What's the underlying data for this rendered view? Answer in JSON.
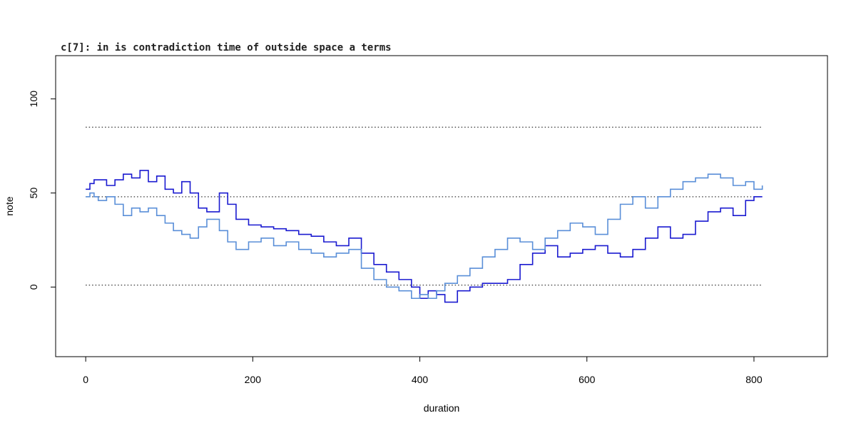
{
  "chart_data": {
    "type": "line",
    "title": "c[7]: in is contradiction time of outside space a terms",
    "xlabel": "duration",
    "ylabel": "note",
    "xlim": [
      -36,
      888
    ],
    "ylim": [
      -37,
      123
    ],
    "x_ticks": [
      0,
      200,
      400,
      600,
      800
    ],
    "y_ticks": [
      0,
      50,
      100
    ],
    "grid": false,
    "legend": "none",
    "reference_lines": [
      {
        "y": 1,
        "x": [
          0,
          810
        ],
        "style": "dotted",
        "color": "#000000"
      },
      {
        "y": 48,
        "x": [
          0,
          810
        ],
        "style": "dotted",
        "color": "#000000"
      },
      {
        "y": 85,
        "x": [
          0,
          810
        ],
        "style": "dotted",
        "color": "#000000"
      }
    ],
    "series": [
      {
        "step": true,
        "color": "#1a1ad0",
        "x": [
          0,
          5,
          10,
          25,
          35,
          45,
          55,
          65,
          75,
          85,
          95,
          105,
          115,
          125,
          135,
          145,
          160,
          170,
          180,
          195,
          210,
          225,
          240,
          255,
          270,
          285,
          300,
          315,
          330,
          345,
          360,
          375,
          390,
          400,
          410,
          420,
          430,
          445,
          460,
          475,
          490,
          505,
          520,
          535,
          550,
          565,
          580,
          595,
          610,
          625,
          640,
          655,
          670,
          685,
          700,
          715,
          730,
          745,
          760,
          775,
          790,
          800,
          810
        ],
        "values": [
          52,
          55,
          57,
          54,
          57,
          60,
          58,
          62,
          56,
          59,
          52,
          50,
          56,
          50,
          42,
          40,
          50,
          44,
          36,
          33,
          32,
          31,
          30,
          28,
          27,
          24,
          22,
          26,
          18,
          12,
          8,
          4,
          0,
          -6,
          -2,
          -4,
          -8,
          -2,
          0,
          2,
          2,
          4,
          12,
          18,
          22,
          16,
          18,
          20,
          22,
          18,
          16,
          20,
          26,
          32,
          26,
          28,
          35,
          40,
          42,
          38,
          46,
          48,
          48
        ]
      },
      {
        "step": true,
        "color": "#5a8fd8",
        "x": [
          0,
          5,
          10,
          15,
          25,
          35,
          45,
          55,
          65,
          75,
          85,
          95,
          105,
          115,
          125,
          135,
          145,
          160,
          170,
          180,
          195,
          210,
          225,
          240,
          255,
          270,
          285,
          300,
          315,
          330,
          345,
          360,
          375,
          390,
          400,
          410,
          420,
          430,
          445,
          460,
          475,
          490,
          505,
          520,
          535,
          550,
          565,
          580,
          595,
          610,
          625,
          640,
          655,
          670,
          685,
          700,
          715,
          730,
          745,
          760,
          775,
          790,
          800,
          810
        ],
        "values": [
          48,
          50,
          48,
          46,
          48,
          44,
          38,
          42,
          40,
          42,
          38,
          34,
          30,
          28,
          26,
          32,
          36,
          30,
          24,
          20,
          24,
          26,
          22,
          24,
          20,
          18,
          16,
          18,
          20,
          10,
          4,
          0,
          -2,
          -6,
          -4,
          -6,
          -2,
          2,
          6,
          10,
          16,
          20,
          26,
          24,
          20,
          26,
          30,
          34,
          32,
          28,
          36,
          44,
          48,
          42,
          48,
          52,
          56,
          58,
          60,
          58,
          54,
          56,
          52,
          54
        ]
      }
    ]
  }
}
